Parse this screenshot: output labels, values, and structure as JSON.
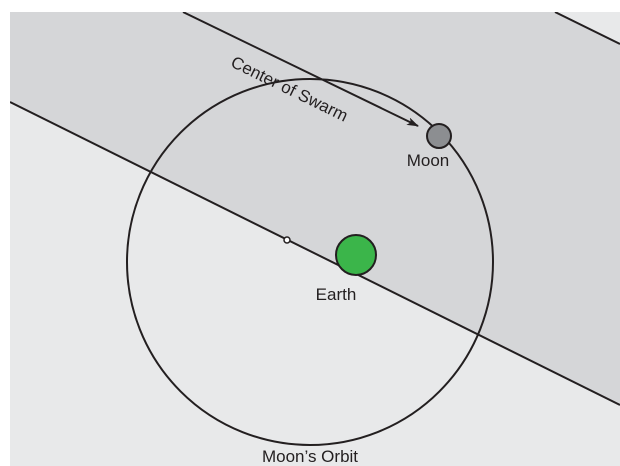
{
  "labels": {
    "swarm": "Center of Swarm",
    "moon": "Moon",
    "earth": "Earth",
    "orbit": "Moon’s Orbit"
  }
}
